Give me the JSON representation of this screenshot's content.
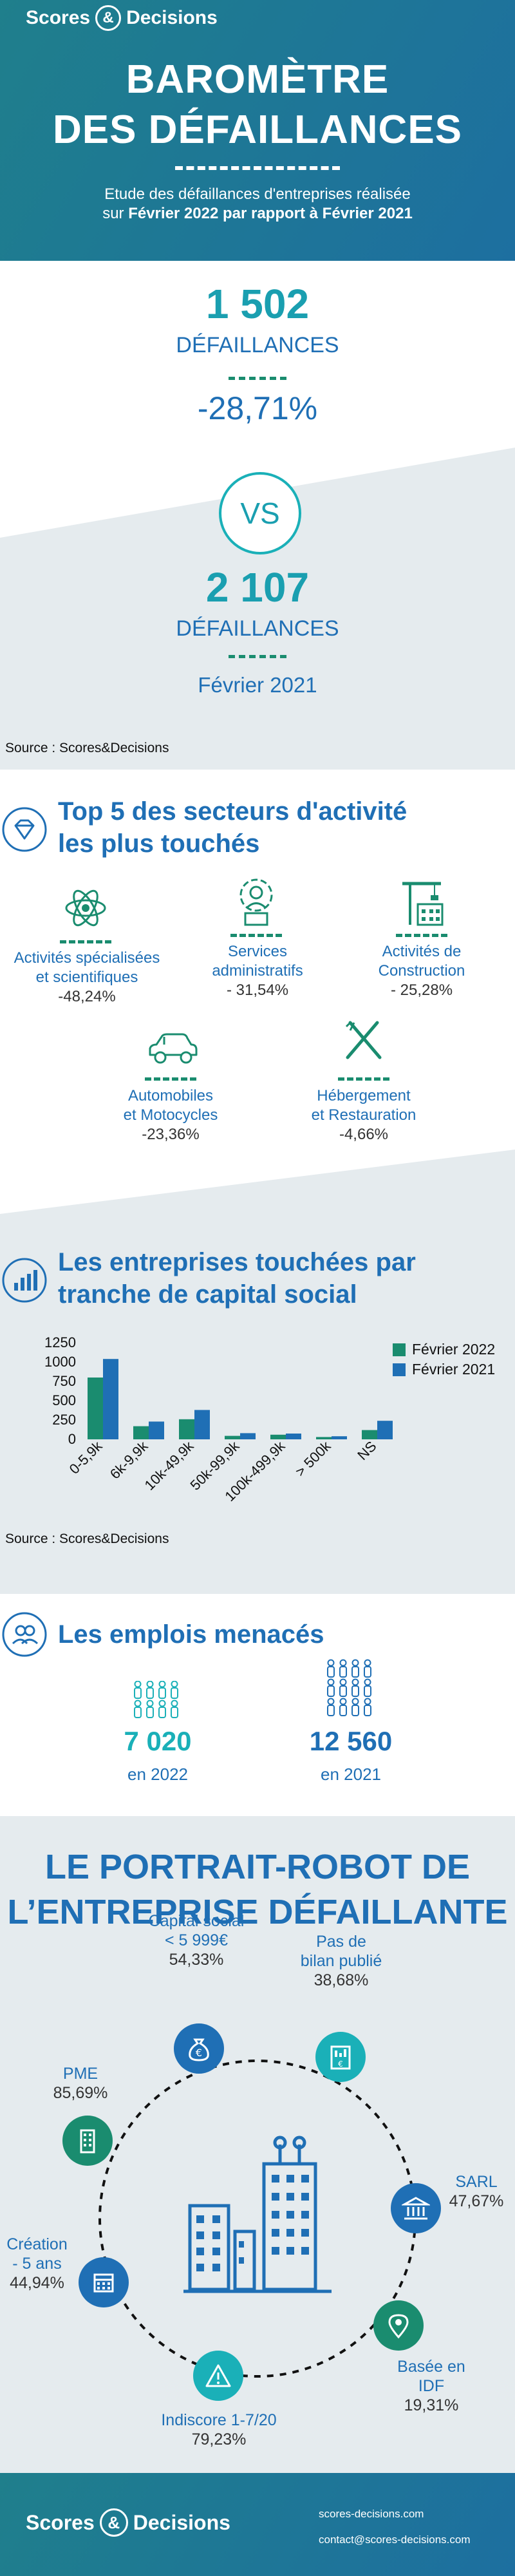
{
  "brand": {
    "name_left": "Scores",
    "amp": "&",
    "name_right": "Decisions"
  },
  "header": {
    "title_line1": "BAROMÈTRE",
    "title_line2": "DES DÉFAILLANCES",
    "subtitle_line1": "Etude des défaillances d'entreprises réalisée",
    "subtitle_prefix": "sur ",
    "subtitle_bold": "Février 2022 par rapport à Février 2021"
  },
  "comparison": {
    "current_number": "1 502",
    "current_label": "DÉFAILLANCES",
    "change": "-28,71%",
    "vs": "VS",
    "previous_number": "2 107",
    "previous_label": "DÉFAILLANCES",
    "previous_period": "Février 2021",
    "source": "Source : Scores&Decisions"
  },
  "sectors": {
    "title_line1": "Top 5 des secteurs d'activité",
    "title_line2": "les plus touchés",
    "items": [
      {
        "icon": "atom-icon",
        "label_line1": "Activités spécialisées",
        "label_line2": "et scientifiques",
        "value": "-48,24%"
      },
      {
        "icon": "administrator-icon",
        "label_line1": "Services",
        "label_line2": "administratifs",
        "value": "- 31,54%"
      },
      {
        "icon": "crane-icon",
        "label_line1": "Activités de",
        "label_line2": "Construction",
        "value": "- 25,28%"
      },
      {
        "icon": "car-icon",
        "label_line1": "Automobiles",
        "label_line2": "et Motocycles",
        "value": "-23,36%"
      },
      {
        "icon": "fork-knife-icon",
        "label_line1": "Hébergement",
        "label_line2": "et Restauration",
        "value": "-4,66%"
      }
    ]
  },
  "capital": {
    "title_line1": "Les entreprises touchées par",
    "title_line2": "tranche de capital social",
    "source": "Source : Scores&Decisions"
  },
  "chart_data": {
    "type": "bar",
    "categories": [
      "0-5,9k",
      "6k-9,9k",
      "10k-49,9k",
      "50k-99,9k",
      "100k-499,9k",
      "> 500k",
      "NS"
    ],
    "series": [
      {
        "name": "Février 2022",
        "color": "#1a8c6f",
        "values": [
          800,
          170,
          260,
          45,
          60,
          30,
          120
        ]
      },
      {
        "name": "Février 2021",
        "color": "#1f6fb5",
        "values": [
          1040,
          230,
          380,
          80,
          75,
          40,
          240
        ]
      }
    ],
    "yticks": [
      "1250",
      "1000",
      "750",
      "500",
      "250",
      "0"
    ],
    "ylim": [
      0,
      1250
    ],
    "legend_position": "top-right"
  },
  "jobs": {
    "title": "Les emplois menacés",
    "items": [
      {
        "number": "7 020",
        "year": "en 2022",
        "color": "#1ab0b8"
      },
      {
        "number": "12 560",
        "year": "en 2021",
        "color": "#1f6fb5"
      }
    ]
  },
  "portrait": {
    "title_line1": "LE PORTRAIT-ROBOT DE",
    "title_line2": "L’ENTREPRISE DÉFAILLANTE",
    "items": [
      {
        "key": "capital",
        "line1": "Capital social",
        "line2": "< 5 999€",
        "value": "54,33%",
        "icon": "money-bag-icon",
        "color": "#1f6fb5"
      },
      {
        "key": "bilan",
        "line1": "Pas de",
        "line2": "bilan publié",
        "value": "38,68%",
        "icon": "balance-sheet-icon",
        "color": "#1ab0b8"
      },
      {
        "key": "pme",
        "line1": "PME",
        "line2": "",
        "value": "85,69%",
        "icon": "building-icon",
        "color": "#1a8c6f"
      },
      {
        "key": "sarl",
        "line1": "SARL",
        "line2": "",
        "value": "47,67%",
        "icon": "bank-icon",
        "color": "#1f6fb5"
      },
      {
        "key": "creation",
        "line1": "Création",
        "line2": "- 5 ans",
        "value": "44,94%",
        "icon": "calendar-icon",
        "color": "#1f6fb5"
      },
      {
        "key": "idf",
        "line1": "Basée en",
        "line2": "IDF",
        "value": "19,31%",
        "icon": "location-pin-icon",
        "color": "#1a8c6f"
      },
      {
        "key": "indiscore",
        "line1": "Indiscore 1-7/20",
        "line2": "",
        "value": "79,23%",
        "icon": "warning-icon",
        "color": "#1ab0b8"
      }
    ]
  },
  "footer": {
    "website": "scores-decisions.com",
    "email": "contact@scores-decisions.com"
  }
}
